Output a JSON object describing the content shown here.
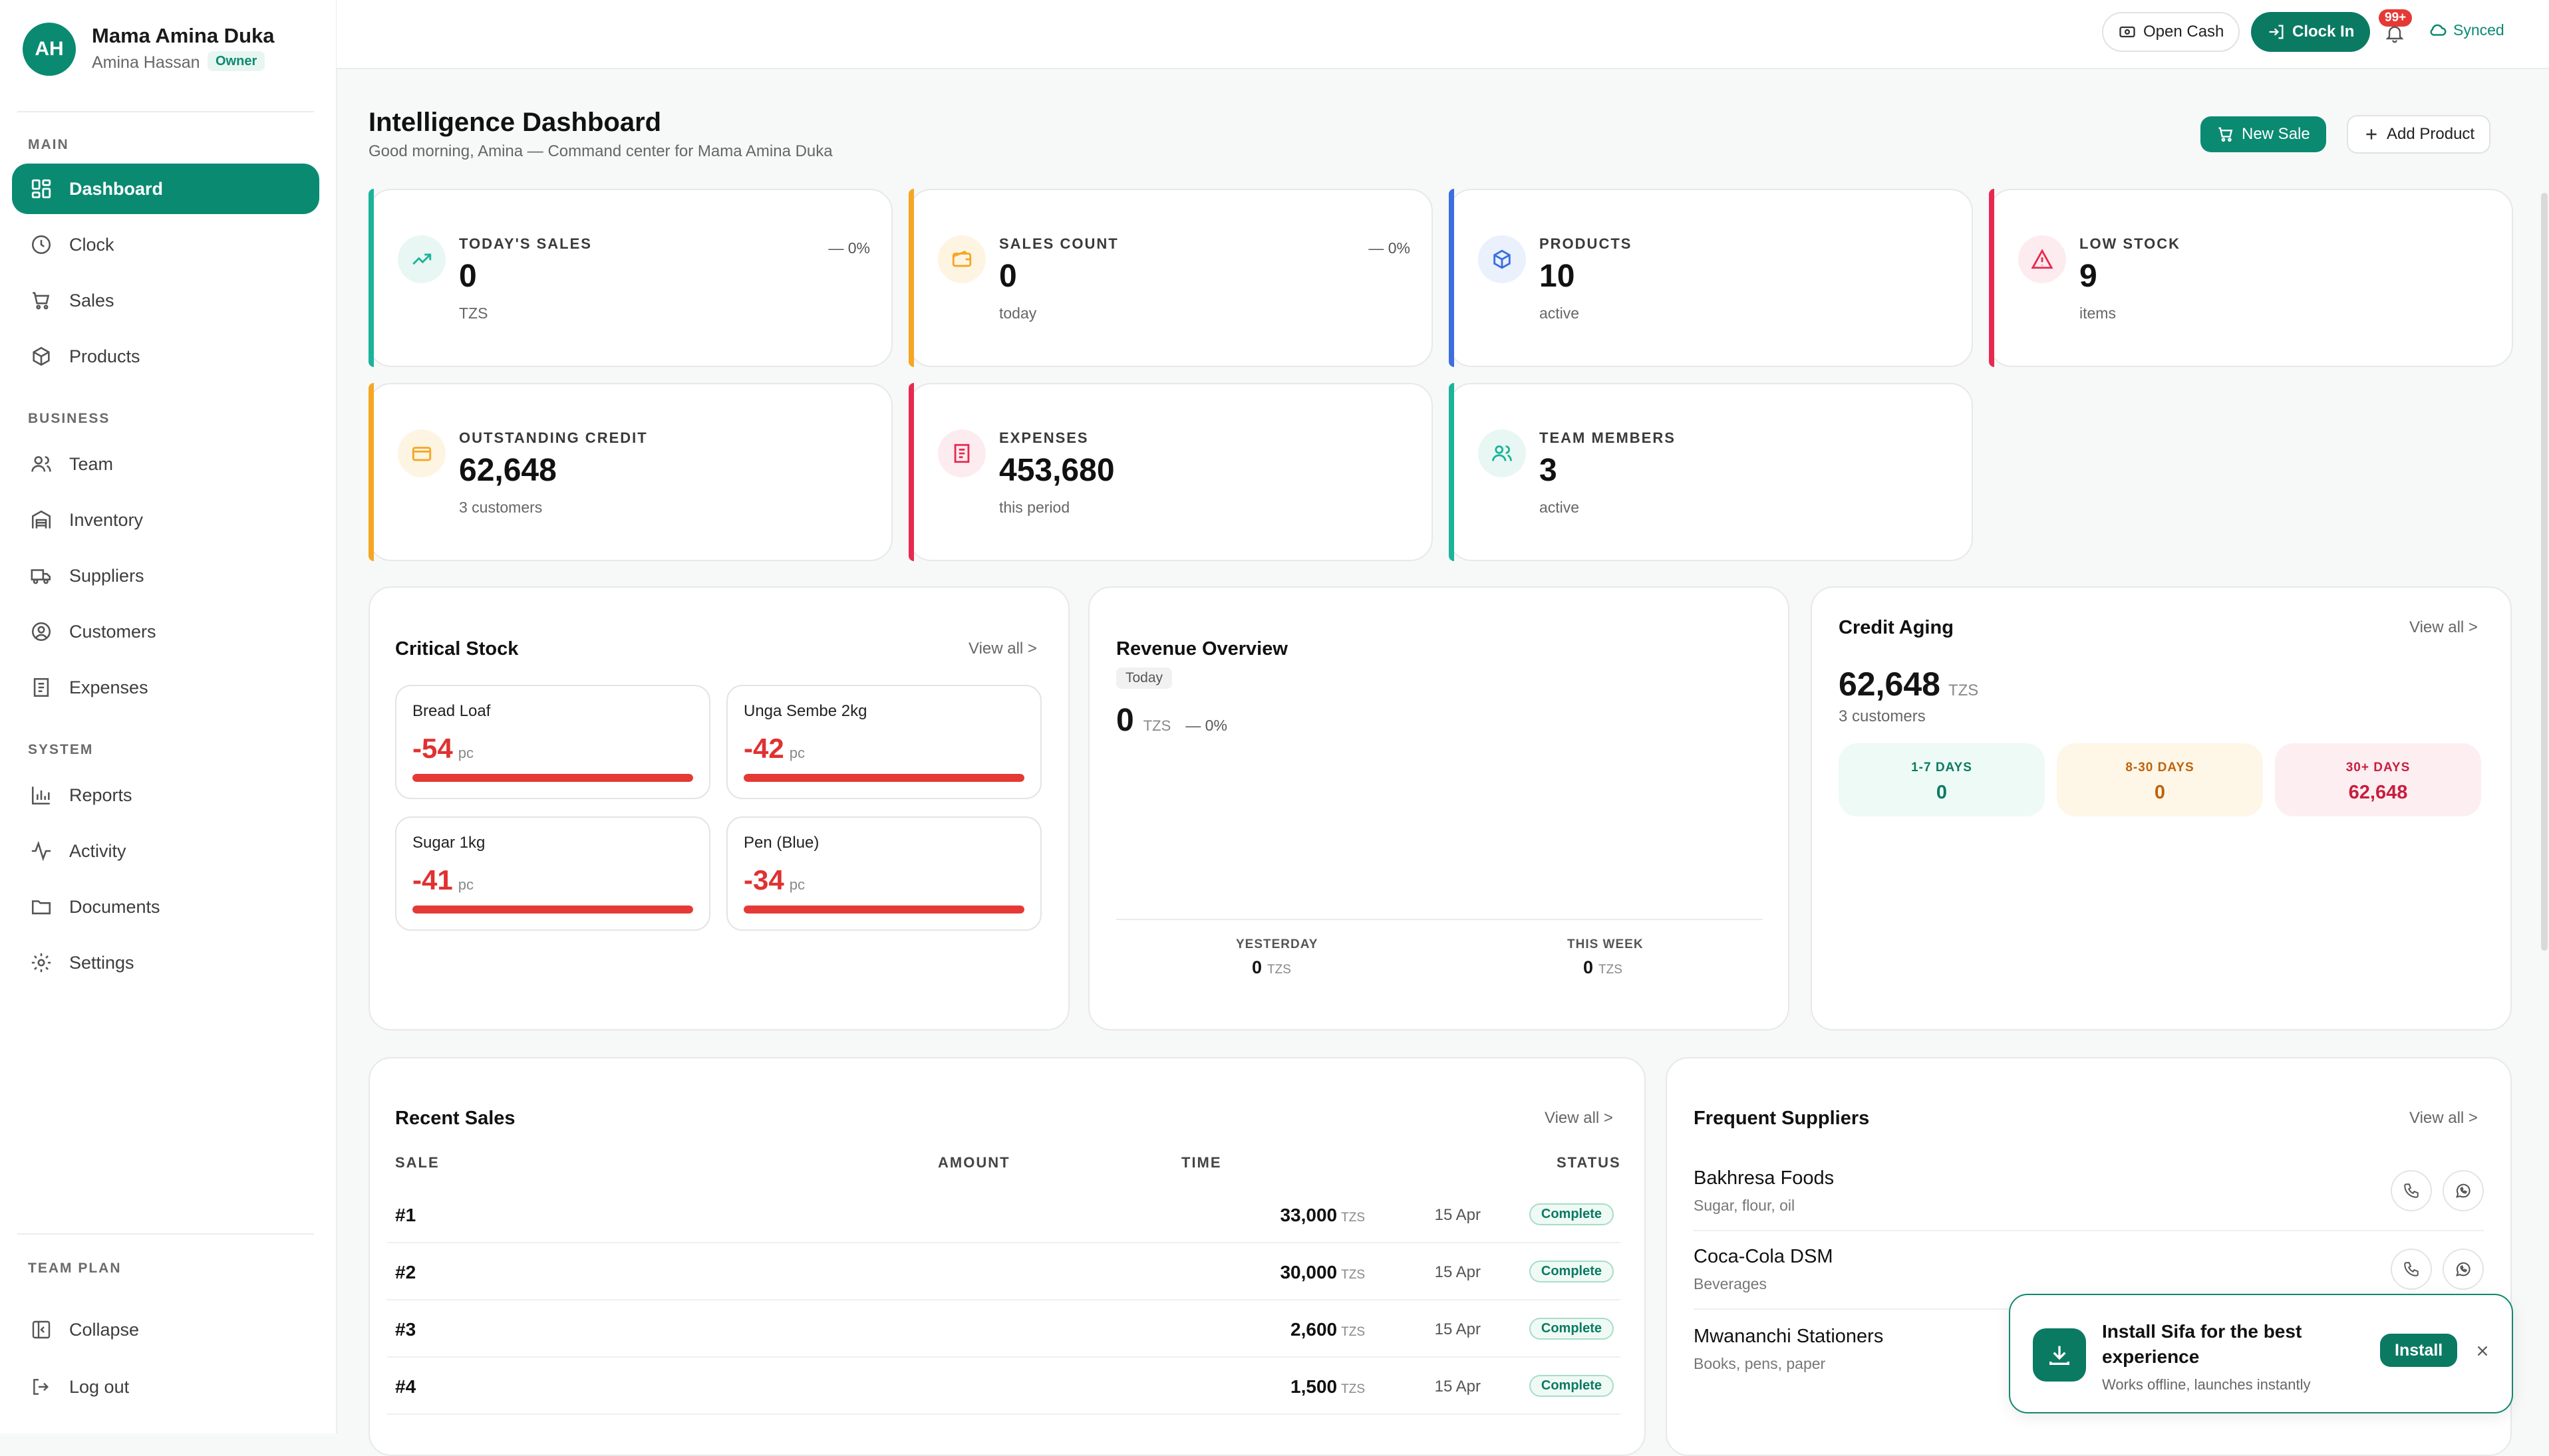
{
  "user": {
    "initials": "AH",
    "shop": "Mama Amina Duka",
    "name": "Amina Hassan",
    "role": "Owner"
  },
  "sidebar": {
    "sections": {
      "main": "MAIN",
      "business": "BUSINESS",
      "system": "SYSTEM",
      "plan": "TEAM PLAN"
    },
    "items": [
      {
        "label": "Dashboard",
        "icon": "dashboard-icon",
        "active": true
      },
      {
        "label": "Clock",
        "icon": "clock-icon"
      },
      {
        "label": "Sales",
        "icon": "cart-icon"
      },
      {
        "label": "Products",
        "icon": "box-icon"
      },
      {
        "label": "Team",
        "icon": "users-icon"
      },
      {
        "label": "Inventory",
        "icon": "warehouse-icon"
      },
      {
        "label": "Suppliers",
        "icon": "truck-icon"
      },
      {
        "label": "Customers",
        "icon": "user-circle-icon"
      },
      {
        "label": "Expenses",
        "icon": "receipt-icon"
      },
      {
        "label": "Reports",
        "icon": "bar-chart-icon"
      },
      {
        "label": "Activity",
        "icon": "activity-icon"
      },
      {
        "label": "Documents",
        "icon": "folder-icon"
      },
      {
        "label": "Settings",
        "icon": "gear-icon"
      }
    ],
    "collapse": "Collapse",
    "logout": "Log out"
  },
  "topbar": {
    "open_cash": "Open Cash",
    "clock_in": "Clock In",
    "notif_count": "99+",
    "sync": "Synced"
  },
  "header": {
    "title": "Intelligence Dashboard",
    "subtitle": "Good morning, Amina — Command center for Mama Amina Duka",
    "new_sale": "New Sale",
    "add_product": "Add Product"
  },
  "stats": [
    {
      "label": "TODAY'S SALES",
      "value": "0",
      "sub": "TZS",
      "change": "— 0%",
      "color": "#1bb39a",
      "icon": "trend-up-icon"
    },
    {
      "label": "SALES COUNT",
      "value": "0",
      "sub": "today",
      "change": "— 0%",
      "color": "#f5a623",
      "icon": "wallet-icon"
    },
    {
      "label": "PRODUCTS",
      "value": "10",
      "sub": "active",
      "change": "",
      "color": "#3b6fe0",
      "icon": "box-icon"
    },
    {
      "label": "LOW STOCK",
      "value": "9",
      "sub": "items",
      "change": "",
      "color": "#e8294f",
      "icon": "alert-icon"
    },
    {
      "label": "OUTSTANDING CREDIT",
      "value": "62,648",
      "sub": "3 customers",
      "change": "",
      "color": "#f5a623",
      "icon": "credit-card-icon"
    },
    {
      "label": "EXPENSES",
      "value": "453,680",
      "sub": "this period",
      "change": "",
      "color": "#e8294f",
      "icon": "receipt-icon"
    },
    {
      "label": "TEAM MEMBERS",
      "value": "3",
      "sub": "active",
      "change": "",
      "color": "#1bb39a",
      "icon": "users-icon"
    }
  ],
  "critical_stock": {
    "title": "Critical Stock",
    "view_all": "View all >",
    "items": [
      {
        "name": "Bread Loaf",
        "qty": "-54",
        "unit": "pc",
        "level": 1.0
      },
      {
        "name": "Unga Sembe 2kg",
        "qty": "-42",
        "unit": "pc",
        "level": 1.0
      },
      {
        "name": "Sugar 1kg",
        "qty": "-41",
        "unit": "pc",
        "level": 1.0
      },
      {
        "name": "Pen (Blue)",
        "qty": "-34",
        "unit": "pc",
        "level": 1.0
      }
    ]
  },
  "revenue": {
    "title": "Revenue Overview",
    "period": "Today",
    "value": "0",
    "currency": "TZS",
    "change": "— 0%",
    "yesterday_label": "YESTERDAY",
    "yesterday_value": "0",
    "week_label": "THIS WEEK",
    "week_value": "0"
  },
  "credit_aging": {
    "title": "Credit Aging",
    "view_all": "View all >",
    "total": "62,648",
    "currency": "TZS",
    "customers": "3 customers",
    "buckets": [
      {
        "label": "1-7 DAYS",
        "value": "0",
        "bg": "#eefaf5",
        "fg": "#0b7a63"
      },
      {
        "label": "8-30 DAYS",
        "value": "0",
        "bg": "#fef7e8",
        "fg": "#c0620a"
      },
      {
        "label": "30+ DAYS",
        "value": "62,648",
        "bg": "#fdeff1",
        "fg": "#c81e3e"
      }
    ]
  },
  "recent_sales": {
    "title": "Recent Sales",
    "view_all": "View all >",
    "columns": [
      "SALE",
      "AMOUNT",
      "TIME",
      "STATUS"
    ],
    "rows": [
      {
        "id": "#1",
        "amount": "33,000",
        "currency": "TZS",
        "time": "15 Apr",
        "status": "Complete"
      },
      {
        "id": "#2",
        "amount": "30,000",
        "currency": "TZS",
        "time": "15 Apr",
        "status": "Complete"
      },
      {
        "id": "#3",
        "amount": "2,600",
        "currency": "TZS",
        "time": "15 Apr",
        "status": "Complete"
      },
      {
        "id": "#4",
        "amount": "1,500",
        "currency": "TZS",
        "time": "15 Apr",
        "status": "Complete"
      }
    ]
  },
  "suppliers": {
    "title": "Frequent Suppliers",
    "view_all": "View all >",
    "items": [
      {
        "name": "Bakhresa Foods",
        "desc": "Sugar, flour, oil"
      },
      {
        "name": "Coca-Cola DSM",
        "desc": "Beverages"
      },
      {
        "name": "Mwananchi Stationers",
        "desc": "Books, pens, paper"
      }
    ]
  },
  "install_toast": {
    "title": "Install Sifa for the best experience",
    "subtitle": "Works offline, launches instantly",
    "button": "Install"
  }
}
